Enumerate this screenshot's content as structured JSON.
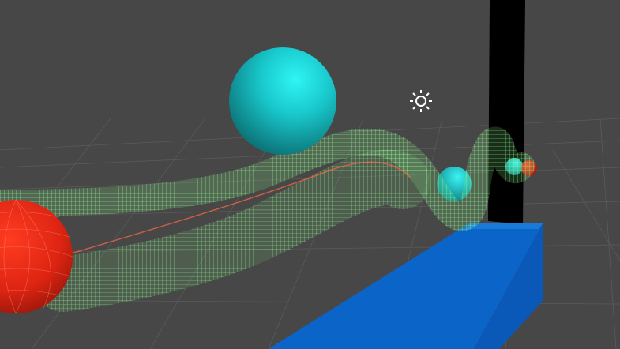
{
  "scene_view": {
    "background_color": "#474747",
    "grid_color": "#5a5a5a",
    "gizmos": {
      "light_icon": "sun-icon"
    },
    "objects": [
      {
        "name": "red-sphere-large",
        "color": "#e2311c"
      },
      {
        "name": "cyan-sphere-large",
        "color": "#14c9cd"
      },
      {
        "name": "cyan-sphere-small",
        "color": "#14c9cd"
      },
      {
        "name": "cyan-sphere-tiny",
        "color": "#14c9cd"
      },
      {
        "name": "red-sphere-tiny",
        "color": "#e2311c"
      },
      {
        "name": "black-pillar",
        "color": "#000000"
      },
      {
        "name": "blue-box",
        "color": "#0b64c8"
      },
      {
        "name": "wireframe-tube",
        "color": "#8cff8c"
      }
    ]
  }
}
